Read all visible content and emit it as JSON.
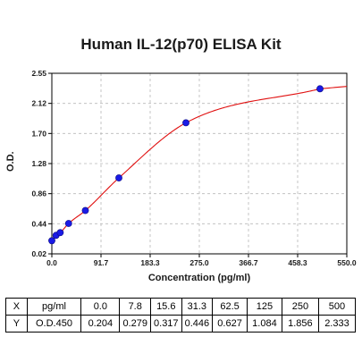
{
  "chart_data": {
    "type": "scatter",
    "title": "Human IL-12(p70) ELISA Kit",
    "xlabel": "Concentration (pg/ml)",
    "ylabel": "O.D.",
    "xlim": [
      0.0,
      550.0
    ],
    "ylim": [
      0.02,
      2.55
    ],
    "x_ticks": [
      "0.0",
      "91.7",
      "183.3",
      "275.0",
      "366.7",
      "458.3",
      "550.0"
    ],
    "y_ticks": [
      "0.02",
      "0.44",
      "0.86",
      "1.28",
      "1.70",
      "2.12",
      "2.55"
    ],
    "grid": true,
    "series": [
      {
        "x": [
          0.0,
          7.8,
          15.6,
          31.3,
          62.5,
          125,
          250,
          500
        ],
        "y": [
          0.204,
          0.279,
          0.317,
          0.446,
          0.627,
          1.084,
          1.856,
          2.333
        ]
      }
    ],
    "fit_curve": true,
    "colors": {
      "points": "#1a1ae6",
      "curve": "#e01010",
      "grid": "#b8b8b8",
      "axis": "#000000"
    }
  },
  "table": {
    "rows": [
      [
        "X",
        "pg/ml",
        "0.0",
        "7.8",
        "15.6",
        "31.3",
        "62.5",
        "125",
        "250",
        "500"
      ],
      [
        "Y",
        "O.D.450",
        "0.204",
        "0.279",
        "0.317",
        "0.446",
        "0.627",
        "1.084",
        "1.856",
        "2.333"
      ]
    ]
  }
}
